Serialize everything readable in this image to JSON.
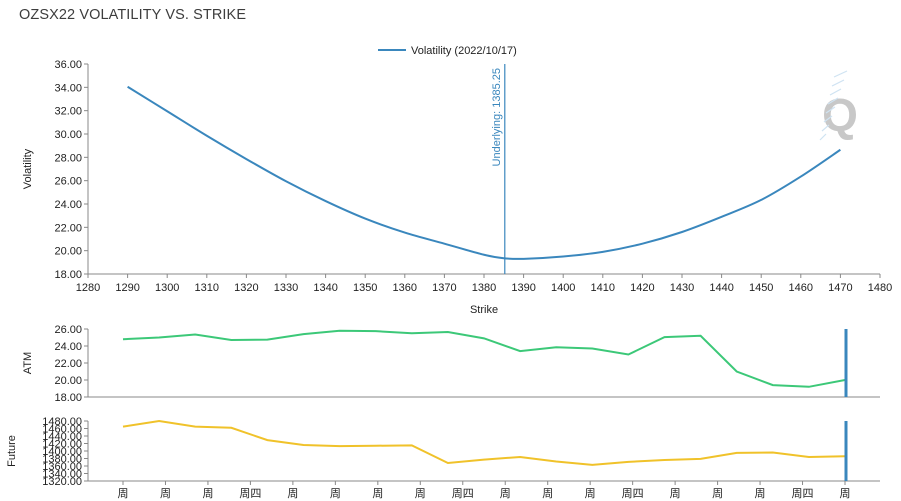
{
  "title": "OZSX22 VOLATILITY VS. STRIKE",
  "colors": {
    "volatility": "#3a87bd",
    "underlying": "#3a87bd",
    "atm": "#3cc878",
    "future": "#f0c22a",
    "marker": "#3a87bd",
    "axis": "#888888",
    "text": "#222222"
  },
  "chart_data": [
    {
      "type": "line",
      "legend": "Volatility (2022/10/17)",
      "xlabel": "Strike",
      "ylabel": "Volatility",
      "xlim": [
        1280,
        1480
      ],
      "ylim": [
        18,
        36
      ],
      "xticks": [
        "1280",
        "1290",
        "1300",
        "1310",
        "1320",
        "1330",
        "1340",
        "1350",
        "1360",
        "1370",
        "1380",
        "1390",
        "1400",
        "1410",
        "1420",
        "1430",
        "1440",
        "1450",
        "1460",
        "1470",
        "1480"
      ],
      "yticks": [
        "18.00",
        "20.00",
        "22.00",
        "24.00",
        "26.00",
        "28.00",
        "30.00",
        "32.00",
        "34.00",
        "36.00"
      ],
      "x": [
        1290,
        1300,
        1310,
        1320,
        1330,
        1340,
        1350,
        1360,
        1370,
        1380,
        1385,
        1390,
        1400,
        1410,
        1420,
        1430,
        1440,
        1450,
        1460,
        1470
      ],
      "y": [
        34.05,
        31.95,
        29.85,
        27.85,
        25.95,
        24.25,
        22.75,
        21.55,
        20.6,
        19.65,
        19.35,
        19.3,
        19.5,
        19.9,
        20.6,
        21.6,
        22.9,
        24.35,
        26.35,
        28.65
      ],
      "underlying": {
        "value": 1385.25,
        "label": "Underlying: 1385.25"
      }
    },
    {
      "type": "line",
      "ylabel": "ATM",
      "ylim": [
        18,
        26
      ],
      "yticks": [
        "18.00",
        "20.00",
        "22.00",
        "24.00",
        "26.00"
      ],
      "values": [
        24.8,
        25.0,
        25.35,
        24.7,
        24.75,
        25.4,
        25.8,
        25.75,
        25.5,
        25.65,
        24.9,
        23.4,
        23.85,
        23.7,
        23.0,
        25.05,
        25.2,
        21.0,
        19.4,
        19.2,
        20.0
      ]
    },
    {
      "type": "line",
      "ylabel": "Future",
      "ylim": [
        1320,
        1480
      ],
      "yticks": [
        "1320.00",
        "1340.00",
        "1360.00",
        "1380.00",
        "1400.00",
        "1420.00",
        "1440.00",
        "1460.00",
        "1480.00"
      ],
      "values": [
        1465,
        1480,
        1465,
        1462,
        1429,
        1416,
        1413,
        1414,
        1415,
        1368,
        1377,
        1384,
        1372,
        1363,
        1371,
        1376,
        1379,
        1395,
        1396,
        1384,
        1386
      ]
    }
  ],
  "date_axis": {
    "labels": [
      "周",
      "周",
      "周",
      "周四",
      "周",
      "周",
      "周",
      "周",
      "周四",
      "周",
      "周",
      "周",
      "周四",
      "周",
      "周",
      "周",
      "周四",
      "周"
    ]
  }
}
